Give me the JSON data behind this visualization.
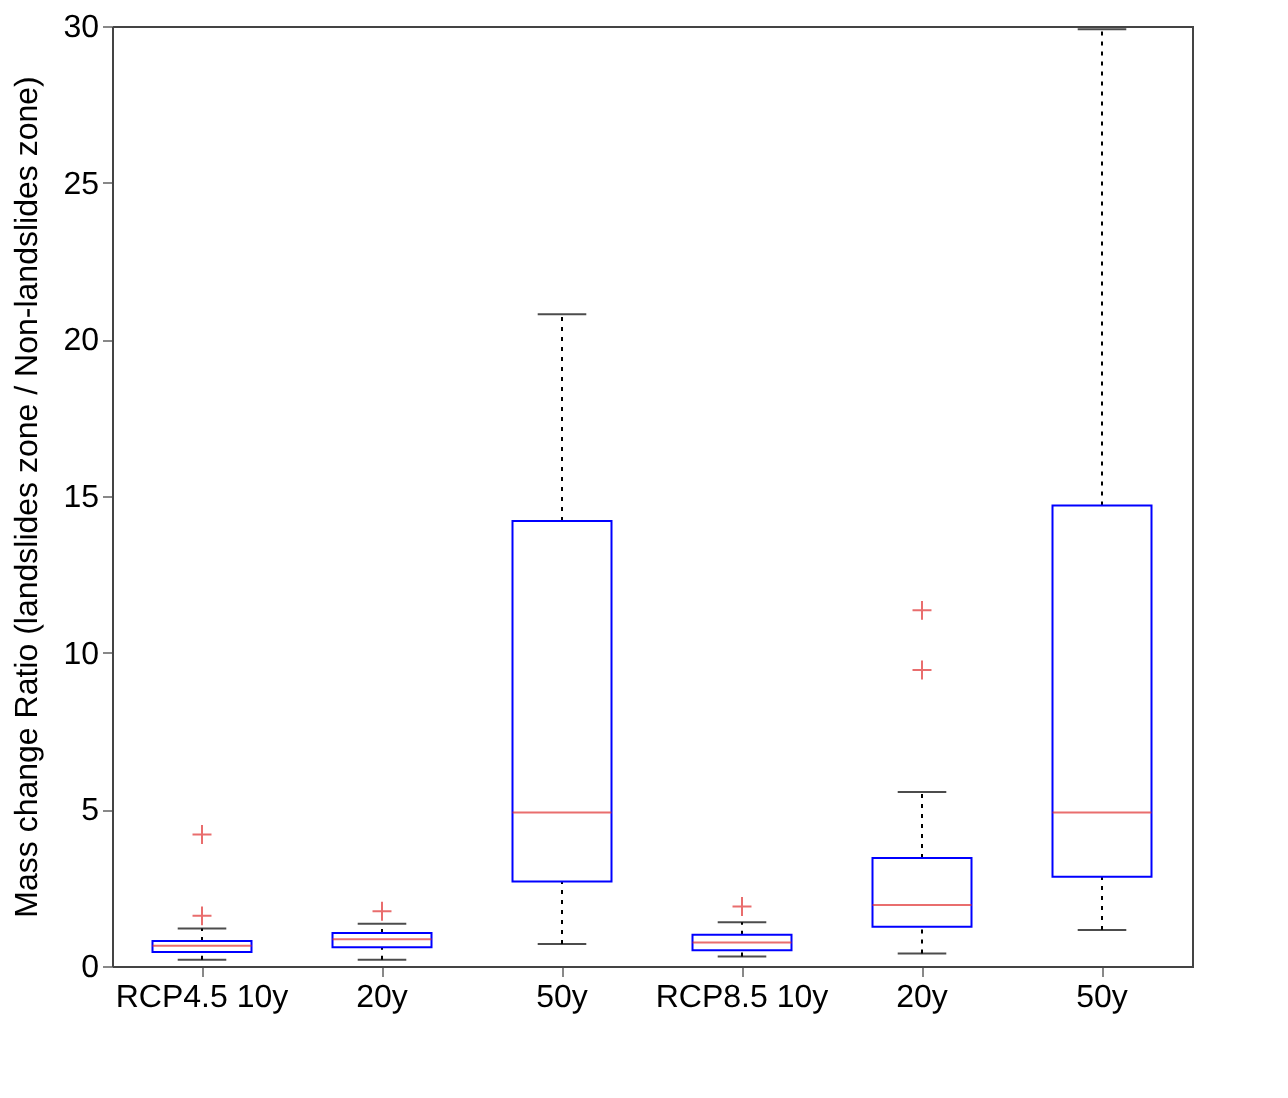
{
  "chart_data": {
    "type": "box",
    "ylabel": "Mass change Ratio (landslides zone / Non-landslides zone)",
    "categories": [
      "RCP4.5 10y",
      "20y",
      "50y",
      "RCP8.5 10y",
      "20y",
      "50y"
    ],
    "boxes": [
      {
        "low": 0.2,
        "q1": 0.45,
        "median": 0.65,
        "q3": 0.8,
        "high": 1.2,
        "outliers": [
          1.6,
          4.2
        ]
      },
      {
        "low": 0.2,
        "q1": 0.6,
        "median": 0.85,
        "q3": 1.05,
        "high": 1.35,
        "outliers": [
          1.75
        ]
      },
      {
        "low": 0.7,
        "q1": 2.7,
        "median": 4.9,
        "q3": 14.2,
        "high": 20.8
      },
      {
        "low": 0.3,
        "q1": 0.5,
        "median": 0.75,
        "q3": 1.0,
        "high": 1.4,
        "outliers": [
          1.9
        ]
      },
      {
        "low": 0.4,
        "q1": 1.25,
        "median": 1.95,
        "q3": 3.45,
        "high": 5.55,
        "outliers": [
          9.45,
          11.35
        ]
      },
      {
        "low": 1.15,
        "q1": 2.85,
        "median": 4.9,
        "q3": 14.7,
        "high": 29.9
      }
    ],
    "ylim": [
      0,
      30
    ],
    "yticks": [
      0,
      5,
      10,
      15,
      20,
      25,
      30
    ],
    "marker": "cross",
    "grid": false
  }
}
